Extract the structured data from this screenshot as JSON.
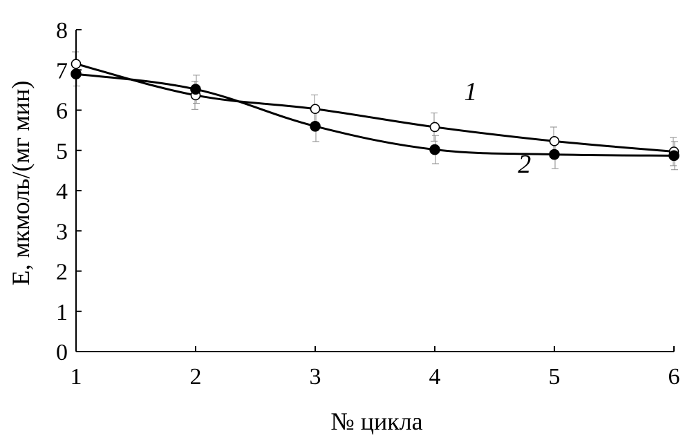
{
  "chart_data": {
    "type": "line",
    "xlabel": "№ цикла",
    "ylabel": "E, мкмоль/(мг мин)",
    "x": [
      1,
      2,
      3,
      4,
      5,
      6
    ],
    "xlim": [
      1,
      6
    ],
    "ylim": [
      0,
      8
    ],
    "xticks": [
      "1",
      "2",
      "3",
      "4",
      "5",
      "6"
    ],
    "yticks": [
      "0",
      "1",
      "2",
      "3",
      "4",
      "5",
      "6",
      "7",
      "8"
    ],
    "grid": false,
    "series": [
      {
        "name": "1",
        "marker": "open-circle",
        "values": [
          7.15,
          6.37,
          6.03,
          5.58,
          5.23,
          4.97
        ],
        "errors": [
          0.3,
          0.35,
          0.35,
          0.35,
          0.35,
          0.35
        ],
        "label_at": [
          4.3,
          6.25
        ]
      },
      {
        "name": "2",
        "marker": "filled-circle",
        "values": [
          6.9,
          6.52,
          5.6,
          5.02,
          4.9,
          4.87
        ],
        "errors": [
          0.3,
          0.35,
          0.38,
          0.35,
          0.35,
          0.35
        ],
        "label_at": [
          4.75,
          4.45
        ]
      }
    ]
  }
}
